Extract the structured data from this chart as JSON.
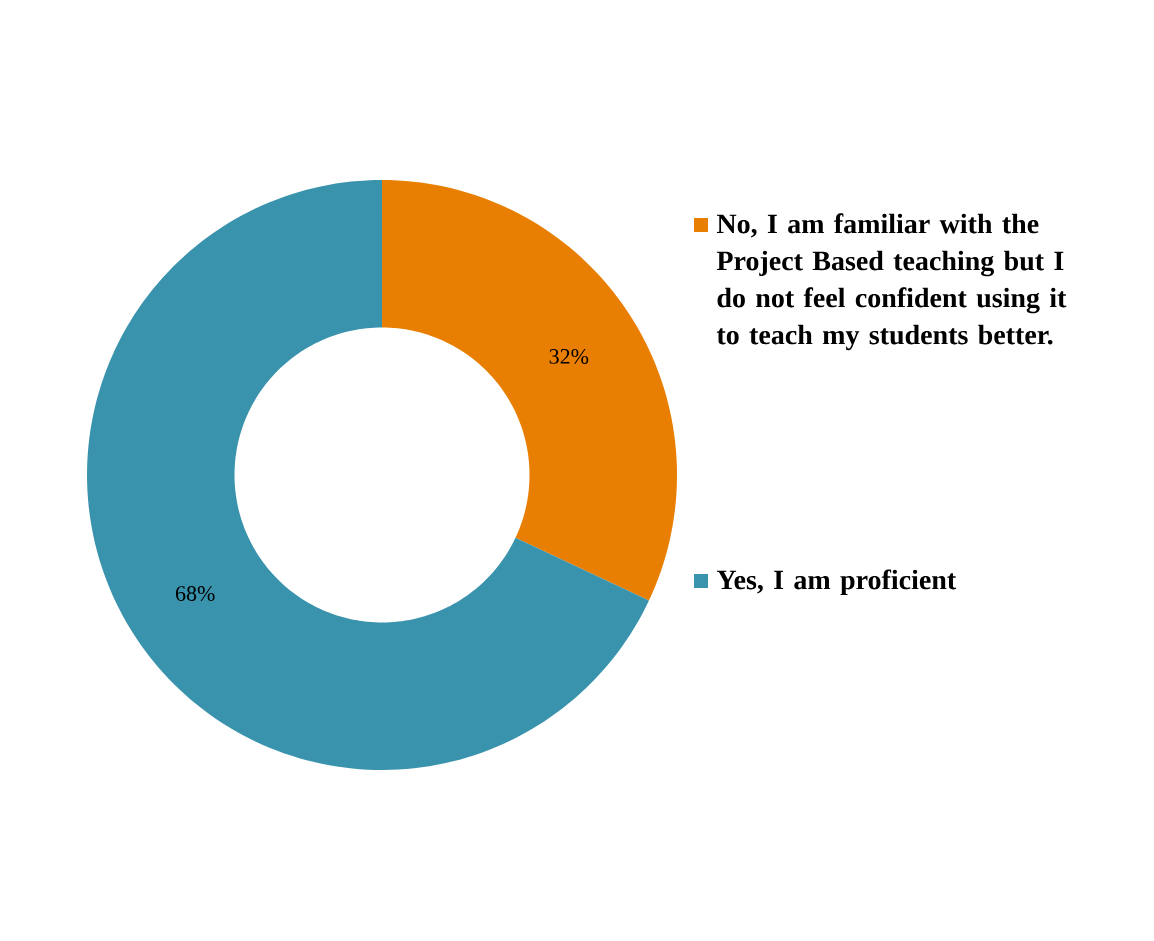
{
  "chart_data": {
    "type": "donut",
    "categories": [
      "No, I am familiar with the Project Based teaching but I do not feel confident using it to teach my students better.",
      "Yes, I am proficient"
    ],
    "values": [
      32,
      68
    ],
    "colors": [
      "#e97f02",
      "#3a93ad"
    ],
    "value_labels": [
      "32%",
      "68%"
    ],
    "legend": "right"
  }
}
